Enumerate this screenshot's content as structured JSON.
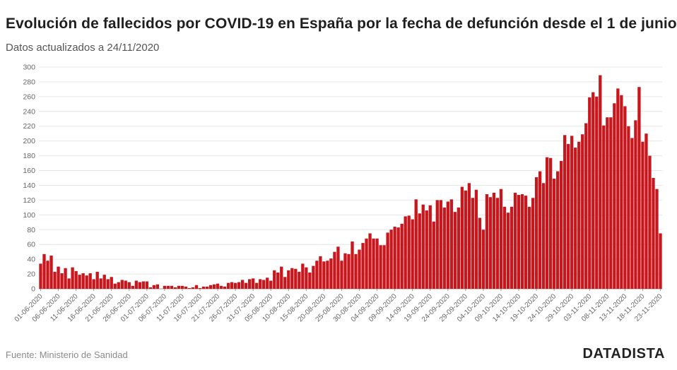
{
  "header": {
    "title": "Evolución de fallecidos por COVID-19 en España por la fecha de defunción desde el 1 de junio",
    "subtitle": "Datos actualizados a 24/11/2020"
  },
  "footer": {
    "source": "Fuente: Ministerio de Sanidad",
    "brand": "DATADISTA"
  },
  "colors": {
    "bar": "#c8161d",
    "grid": "#e6e6e6",
    "tick_text": "#666666"
  },
  "chart_data": {
    "type": "bar",
    "title": "Evolución de fallecidos por COVID-19 en España por la fecha de defunción desde el 1 de junio",
    "xlabel": "",
    "ylabel": "",
    "ylim": [
      0,
      300
    ],
    "yticks": [
      0,
      20,
      40,
      60,
      80,
      100,
      120,
      140,
      160,
      180,
      200,
      220,
      240,
      260,
      280,
      300
    ],
    "start_date": "01-06-2020",
    "xtick_labels": [
      "01-06-2020",
      "06-06-2020",
      "11-06-2020",
      "16-06-2020",
      "21-06-2020",
      "26-06-2020",
      "01-07-2020",
      "06-07-2020",
      "11-07-2020",
      "16-07-2020",
      "21-07-2020",
      "26-07-2020",
      "31-07-2020",
      "05-08-2020",
      "10-08-2020",
      "15-08-2020",
      "20-08-2020",
      "25-08-2020",
      "30-08-2020",
      "04-09-2020",
      "09-09-2020",
      "14-09-2020",
      "19-09-2020",
      "24-09-2020",
      "29-09-2020",
      "04-10-2020",
      "09-10-2020",
      "14-10-2020",
      "19-10-2020",
      "24-10-2020",
      "29-10-2020",
      "03-11-2020",
      "08-11-2020",
      "13-11-2020",
      "18-11-2020",
      "23-11-2020"
    ],
    "values": [
      34,
      47,
      38,
      45,
      23,
      30,
      21,
      28,
      14,
      29,
      24,
      19,
      21,
      18,
      21,
      13,
      23,
      14,
      19,
      13,
      16,
      7,
      9,
      12,
      11,
      9,
      4,
      11,
      9,
      10,
      10,
      2,
      5,
      6,
      0,
      4,
      4,
      4,
      2,
      4,
      4,
      3,
      1,
      2,
      5,
      1,
      3,
      3,
      5,
      6,
      7,
      4,
      3,
      8,
      9,
      8,
      9,
      12,
      8,
      13,
      14,
      8,
      13,
      12,
      15,
      11,
      25,
      22,
      30,
      16,
      25,
      28,
      27,
      23,
      34,
      29,
      22,
      31,
      38,
      44,
      37,
      38,
      41,
      50,
      57,
      38,
      48,
      47,
      64,
      47,
      53,
      62,
      68,
      75,
      68,
      68,
      59,
      59,
      76,
      80,
      84,
      83,
      88,
      98,
      99,
      94,
      121,
      102,
      114,
      106,
      113,
      91,
      120,
      120,
      110,
      118,
      121,
      104,
      110,
      138,
      133,
      143,
      123,
      134,
      96,
      80,
      128,
      124,
      130,
      123,
      135,
      111,
      103,
      111,
      130,
      127,
      128,
      126,
      111,
      123,
      151,
      159,
      143,
      178,
      177,
      149,
      159,
      173,
      208,
      196,
      207,
      191,
      199,
      209,
      224,
      259,
      266,
      260,
      289,
      221,
      232,
      232,
      251,
      271,
      262,
      247,
      220,
      204,
      228,
      273,
      199,
      210,
      180,
      150,
      135,
      75
    ]
  }
}
